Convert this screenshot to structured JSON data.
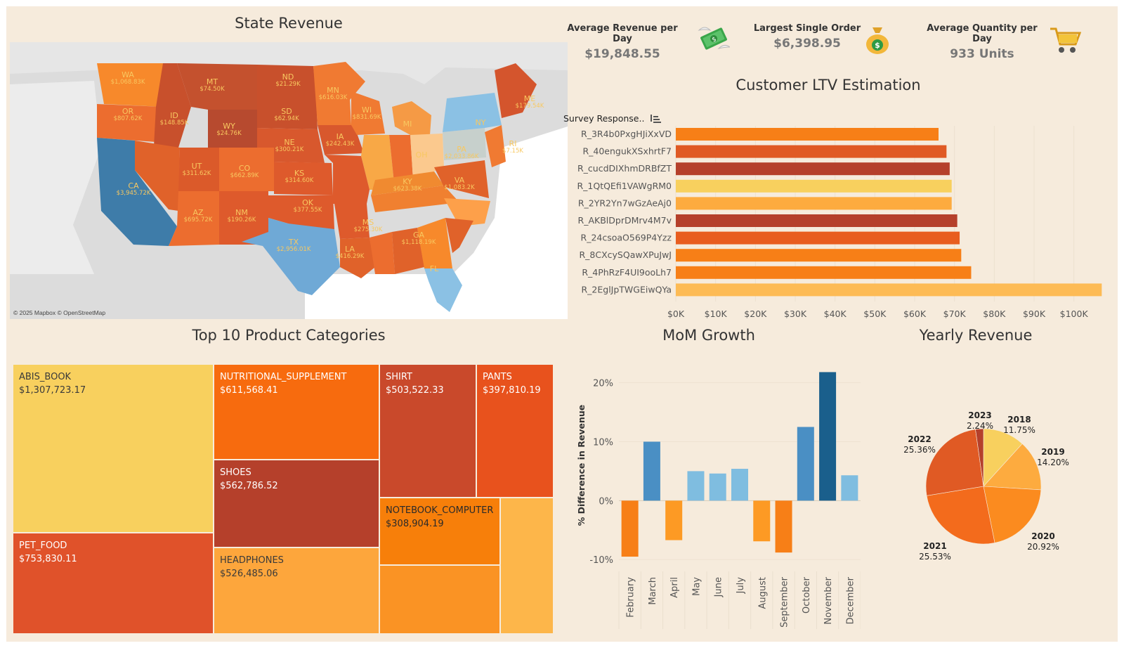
{
  "dashboard": {
    "state_revenue_title": "State Revenue",
    "map_credit": "© 2025 Mapbox © OpenStreetMap",
    "kpis": [
      {
        "label": "Average Revenue per Day",
        "value": "$19,848.55",
        "icon": "money-wings-icon"
      },
      {
        "label": "Largest Single Order",
        "value": "$6,398.95",
        "icon": "money-bag-icon"
      },
      {
        "label": "Average Quantity per Day",
        "value": "933 Units",
        "icon": "shopping-cart-icon"
      }
    ],
    "ltv_title": "Customer LTV Estimation",
    "ltv_axis_header": "Survey Response..",
    "treemap_title": "Top 10 Product Categories",
    "mom_title": "MoM Growth",
    "yearly_title": "Yearly Revenue"
  },
  "colors": {
    "background": "#f6ebdc",
    "orange_dark": "#b5402b",
    "orange_mid": "#e05a24",
    "orange": "#f77f17",
    "orange_light": "#fdab3f",
    "yellow": "#f8d05e",
    "blue_dark": "#1a5f8c",
    "blue_mid": "#4a8fc4",
    "blue_light": "#7fbde0"
  },
  "map_states": [
    {
      "abbr": "WA",
      "value": "$1,068.83K"
    },
    {
      "abbr": "OR",
      "value": "$807.62K"
    },
    {
      "abbr": "CA",
      "value": "$3,945.72K"
    },
    {
      "abbr": "ID",
      "value": "$148.85K"
    },
    {
      "abbr": "MT",
      "value": "$74.50K"
    },
    {
      "abbr": "WY",
      "value": "$24.76K"
    },
    {
      "abbr": "UT",
      "value": "$311.62K"
    },
    {
      "abbr": "CO",
      "value": "$662.89K"
    },
    {
      "abbr": "AZ",
      "value": "$695.72K"
    },
    {
      "abbr": "NM",
      "value": "$190.26K"
    },
    {
      "abbr": "ND",
      "value": "$21.29K"
    },
    {
      "abbr": "SD",
      "value": "$62.94K"
    },
    {
      "abbr": "NE",
      "value": "$300.21K"
    },
    {
      "abbr": "KS",
      "value": "$314.60K"
    },
    {
      "abbr": "OK",
      "value": "$377.55K"
    },
    {
      "abbr": "TX",
      "value": "$2,956.01K"
    },
    {
      "abbr": "MN",
      "value": "$616.03K"
    },
    {
      "abbr": "IA",
      "value": "$242.43K"
    },
    {
      "abbr": "WI",
      "value": "$831.69K"
    },
    {
      "abbr": "MS",
      "value": "$275.30K"
    },
    {
      "abbr": "LA",
      "value": "$416.29K"
    },
    {
      "abbr": "KY",
      "value": "$623.38K"
    },
    {
      "abbr": "VA",
      "value": "$1,083.2K"
    },
    {
      "abbr": "GA",
      "value": "$1,118.19K"
    },
    {
      "abbr": "PA",
      "value": "$2,033.86K"
    },
    {
      "abbr": "ME",
      "value": "$179.54K"
    },
    {
      "abbr": "OH",
      "value": ""
    },
    {
      "abbr": "MI",
      "value": ""
    },
    {
      "abbr": "NY",
      "value": ""
    },
    {
      "abbr": "FL",
      "value": ""
    },
    {
      "abbr": "RI",
      "value": "$7.15K"
    }
  ],
  "treemap": [
    {
      "name": "ABIS_BOOK",
      "value": "$1,307,723.17"
    },
    {
      "name": "PET_FOOD",
      "value": "$753,830.11"
    },
    {
      "name": "NUTRITIONAL_SUPPLEMENT",
      "value": "$611,568.41"
    },
    {
      "name": "SHOES",
      "value": "$562,786.52"
    },
    {
      "name": "HEADPHONES",
      "value": "$526,485.06"
    },
    {
      "name": "SHIRT",
      "value": "$503,522.33"
    },
    {
      "name": "PANTS",
      "value": "$397,810.19"
    },
    {
      "name": "NOTEBOOK_COMPUTER",
      "value": "$308,904.19"
    },
    {
      "name": "",
      "value": ""
    },
    {
      "name": "",
      "value": ""
    }
  ],
  "chart_data": [
    {
      "type": "bar",
      "orientation": "horizontal",
      "title": "Customer LTV Estimation",
      "ylabel": "Survey Response..",
      "categories": [
        "R_3R4b0PxgHJiXxVD",
        "R_40engukXSxhrtF7",
        "R_cucdDIXhmDRBfZT",
        "R_1QtQEfi1VAWgRM0",
        "R_2YR2Yn7wGzAeAj0",
        "R_AKBlDprDMrv4M7v",
        "R_24csoaO569P4Yzz",
        "R_8CXcySQawXPuJwJ",
        "R_4PhRzF4UI9ooLh7",
        "R_2EglJpTWGEiwQYa"
      ],
      "values": [
        66000,
        68000,
        68800,
        69300,
        69300,
        70700,
        71300,
        71700,
        74200,
        107000
      ],
      "colors": [
        "#f77f17",
        "#e05a24",
        "#b5402b",
        "#f8d05e",
        "#fdab3f",
        "#b5402b",
        "#e85d1f",
        "#f77f17",
        "#f77f17",
        "#fdbb55"
      ],
      "xticks": [
        "$0K",
        "$10K",
        "$20K",
        "$30K",
        "$40K",
        "$50K",
        "$60K",
        "$70K",
        "$80K",
        "$90K",
        "$100K"
      ],
      "xlim": [
        0,
        108000
      ],
      "grid": true
    },
    {
      "type": "bar",
      "title": "MoM Growth",
      "ylabel": "% Difference in Revenue",
      "categories": [
        "February",
        "March",
        "April",
        "May",
        "June",
        "July",
        "August",
        "September",
        "October",
        "November",
        "December"
      ],
      "values": [
        -9.5,
        10.0,
        -6.7,
        5.0,
        4.6,
        5.4,
        -6.9,
        -8.8,
        12.5,
        21.8,
        4.3
      ],
      "colors": [
        "#f77f17",
        "#4a8fc4",
        "#fd9a24",
        "#7fbde0",
        "#7fbde0",
        "#7fbde0",
        "#fd9a24",
        "#f77f17",
        "#4a8fc4",
        "#1a5f8c",
        "#7fbde0"
      ],
      "yticks": [
        "20%",
        "10%",
        "0%",
        "-10%"
      ],
      "ytick_values": [
        20,
        10,
        0,
        -10
      ],
      "ylim": [
        -12,
        24
      ],
      "grid": true
    },
    {
      "type": "pie",
      "title": "Yearly Revenue",
      "slices": [
        {
          "label": "2018",
          "pct": "11.75%",
          "value": 11.75,
          "color": "#f8d05e"
        },
        {
          "label": "2019",
          "pct": "14.20%",
          "value": 14.2,
          "color": "#fdab3f"
        },
        {
          "label": "2020",
          "pct": "20.92%",
          "value": 20.92,
          "color": "#fb8b1f"
        },
        {
          "label": "2021",
          "pct": "25.53%",
          "value": 25.53,
          "color": "#f36b1c"
        },
        {
          "label": "2022",
          "pct": "25.36%",
          "value": 25.36,
          "color": "#e05a24"
        },
        {
          "label": "2023",
          "pct": "2.24%",
          "value": 2.24,
          "color": "#b5402b"
        }
      ]
    }
  ]
}
